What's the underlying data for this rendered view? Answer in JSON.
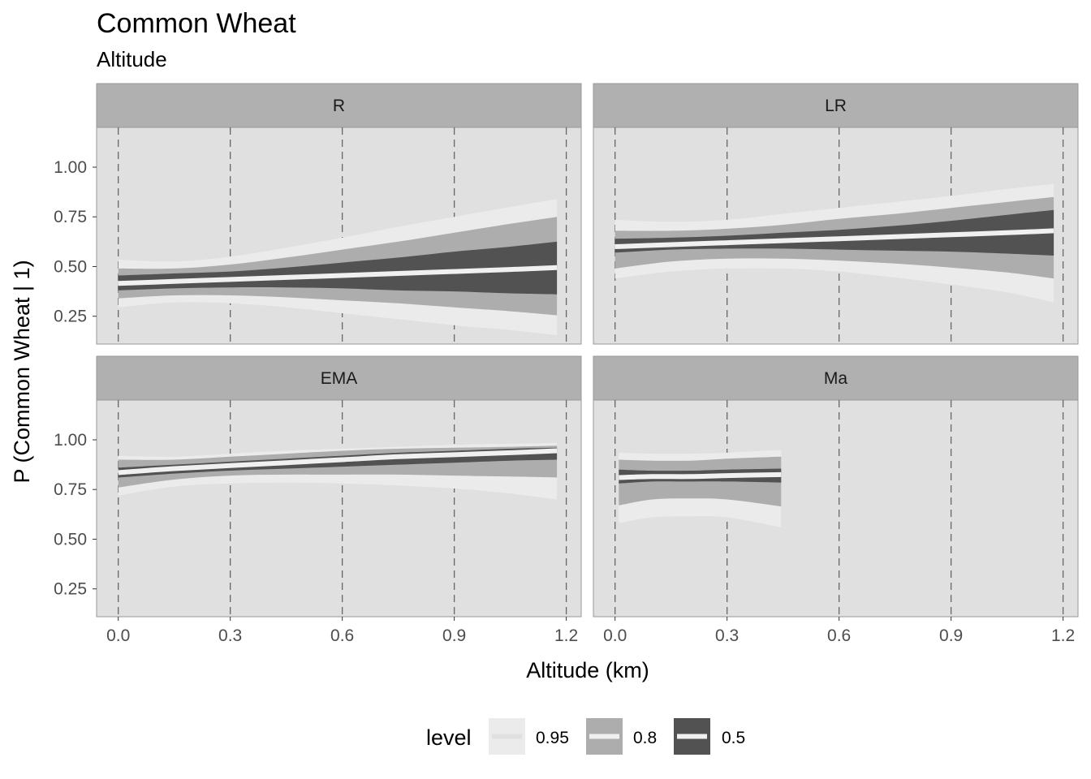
{
  "chart_data": {
    "type": "area",
    "title": "Common Wheat",
    "subtitle": "Altitude",
    "xlabel": "Altitude (km)",
    "ylabel": "P (Common Wheat | 1)",
    "x_ticks": [
      0.0,
      0.3,
      0.6,
      0.9,
      1.2
    ],
    "x_tick_labels": [
      "0.0",
      "0.3",
      "0.6",
      "0.9",
      "1.2"
    ],
    "y_ticks": [
      0.25,
      0.5,
      0.75,
      1.0
    ],
    "y_tick_labels": [
      "0.25",
      "0.50",
      "0.75",
      "1.00"
    ],
    "xlim": [
      -0.058,
      1.24
    ],
    "ylim": [
      0.11,
      1.2
    ],
    "vertical_dashed_lines_at": [
      0.0,
      0.3,
      0.6,
      0.9,
      1.2
    ],
    "legend": {
      "title": "level",
      "position": "bottom",
      "entries": [
        {
          "label": "0.95",
          "fill": "#ebebeb",
          "line": "#e0e0e0"
        },
        {
          "label": "0.8",
          "fill": "#adadad",
          "line": "#f0f0f0"
        },
        {
          "label": "0.5",
          "fill": "#525252",
          "line": "#f0f0f0"
        }
      ]
    },
    "colors": {
      "panel_bg": "#e0e0e0",
      "strip_bg": "#b0b0b0",
      "band_95": "#ebebeb",
      "band_80": "#adadad",
      "band_50": "#525252",
      "median_line": "#f0f0f0",
      "dashed_line": "#666666",
      "panel_border": "#999999"
    },
    "panels": [
      {
        "label": "R",
        "x": [
          0.0,
          0.15,
          0.3,
          0.45,
          0.6,
          0.75,
          0.9,
          1.05,
          1.175
        ],
        "median": [
          0.415,
          0.425,
          0.435,
          0.445,
          0.455,
          0.465,
          0.475,
          0.485,
          0.495
        ],
        "lo50": [
          0.38,
          0.39,
          0.395,
          0.395,
          0.39,
          0.38,
          0.375,
          0.365,
          0.36
        ],
        "hi50": [
          0.455,
          0.465,
          0.475,
          0.495,
          0.52,
          0.545,
          0.575,
          0.6,
          0.625
        ],
        "lo80": [
          0.34,
          0.355,
          0.355,
          0.345,
          0.33,
          0.315,
          0.295,
          0.275,
          0.255
        ],
        "hi80": [
          0.49,
          0.49,
          0.51,
          0.545,
          0.585,
          0.625,
          0.67,
          0.715,
          0.75
        ],
        "lo95": [
          0.295,
          0.32,
          0.315,
          0.295,
          0.265,
          0.235,
          0.205,
          0.18,
          0.155
        ],
        "hi95": [
          0.535,
          0.525,
          0.55,
          0.595,
          0.645,
          0.7,
          0.75,
          0.8,
          0.84
        ]
      },
      {
        "label": "LR",
        "x": [
          0.0,
          0.15,
          0.3,
          0.45,
          0.6,
          0.75,
          0.9,
          1.05,
          1.175
        ],
        "median": [
          0.6,
          0.61,
          0.62,
          0.63,
          0.64,
          0.65,
          0.66,
          0.67,
          0.68
        ],
        "lo50": [
          0.57,
          0.585,
          0.59,
          0.59,
          0.585,
          0.58,
          0.575,
          0.565,
          0.555
        ],
        "hi50": [
          0.64,
          0.645,
          0.655,
          0.67,
          0.685,
          0.705,
          0.73,
          0.76,
          0.785
        ],
        "lo80": [
          0.49,
          0.525,
          0.54,
          0.54,
          0.53,
          0.515,
          0.495,
          0.47,
          0.44
        ],
        "hi80": [
          0.68,
          0.68,
          0.69,
          0.71,
          0.74,
          0.765,
          0.795,
          0.825,
          0.85
        ],
        "lo95": [
          0.44,
          0.475,
          0.49,
          0.49,
          0.475,
          0.445,
          0.41,
          0.37,
          0.32
        ],
        "hi95": [
          0.735,
          0.725,
          0.735,
          0.765,
          0.795,
          0.825,
          0.855,
          0.89,
          0.915
        ]
      },
      {
        "label": "EMA",
        "x": [
          0.0,
          0.15,
          0.3,
          0.45,
          0.6,
          0.75,
          0.9,
          1.05,
          1.175
        ],
        "median": [
          0.835,
          0.855,
          0.87,
          0.885,
          0.9,
          0.915,
          0.925,
          0.935,
          0.945
        ],
        "lo50": [
          0.81,
          0.83,
          0.845,
          0.855,
          0.865,
          0.875,
          0.885,
          0.895,
          0.9
        ],
        "hi50": [
          0.86,
          0.875,
          0.89,
          0.905,
          0.92,
          0.935,
          0.945,
          0.955,
          0.96
        ],
        "lo80": [
          0.76,
          0.8,
          0.82,
          0.825,
          0.825,
          0.825,
          0.82,
          0.815,
          0.81
        ],
        "hi80": [
          0.9,
          0.9,
          0.915,
          0.93,
          0.945,
          0.955,
          0.96,
          0.965,
          0.97
        ],
        "lo95": [
          0.72,
          0.765,
          0.78,
          0.785,
          0.78,
          0.77,
          0.755,
          0.73,
          0.7
        ],
        "hi95": [
          0.92,
          0.915,
          0.93,
          0.945,
          0.955,
          0.965,
          0.975,
          0.98,
          0.985
        ]
      },
      {
        "label": "Ma",
        "x": [
          0.01,
          0.1,
          0.2,
          0.3,
          0.445
        ],
        "median": [
          0.81,
          0.815,
          0.815,
          0.82,
          0.825
        ],
        "lo50": [
          0.78,
          0.79,
          0.79,
          0.79,
          0.785
        ],
        "hi50": [
          0.85,
          0.845,
          0.845,
          0.85,
          0.855
        ],
        "lo80": [
          0.67,
          0.7,
          0.705,
          0.7,
          0.665
        ],
        "hi80": [
          0.9,
          0.895,
          0.895,
          0.905,
          0.915
        ],
        "lo95": [
          0.58,
          0.61,
          0.615,
          0.61,
          0.56
        ],
        "hi95": [
          0.935,
          0.93,
          0.93,
          0.935,
          0.95
        ]
      }
    ]
  }
}
